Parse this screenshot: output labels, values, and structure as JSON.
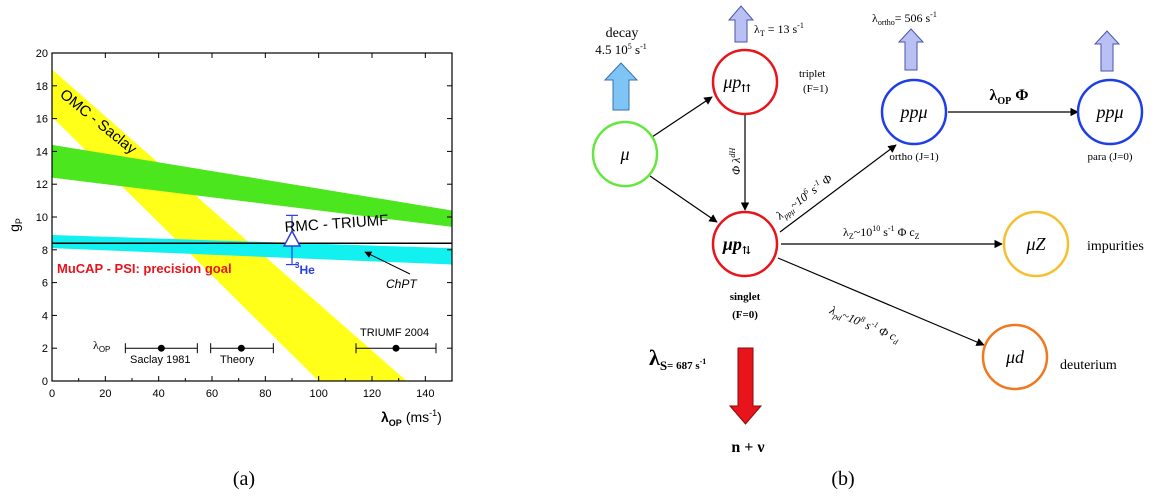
{
  "panel_a": {
    "caption": "(a)",
    "y_axis_label": "g",
    "y_axis_label_sub": "P",
    "x_axis_label": "λ",
    "x_axis_label_sub": "OP",
    "x_axis_unit": "(ms",
    "x_axis_unit_sup": "-1",
    "x_axis_unit_end": ")",
    "x_ticks": [
      "0",
      "20",
      "40",
      "60",
      "80",
      "100",
      "120",
      "140"
    ],
    "y_ticks": [
      "0",
      "2",
      "4",
      "6",
      "8",
      "10",
      "12",
      "14",
      "16",
      "18",
      "20"
    ],
    "band_omc": "OMC - Saclay",
    "band_rmc": "RMC - TRIUMF",
    "band_mucap": "MuCAP - PSI: precision goal",
    "chpt_label": "ChPT",
    "he3_sup": "3",
    "he3_label": "He",
    "lambda_op_marker": "λ",
    "lambda_op_marker_sub": "OP",
    "saclay_label": "Saclay 1981",
    "theory_label": "Theory",
    "triumf_label": "TRIUMF 2004",
    "colors": {
      "omc": "#ffff1a",
      "rmc": "#4ce61e",
      "mucap": "#12f0f0",
      "he3": "#2a3ee6",
      "mucap_text": "#e8141c"
    }
  },
  "chart_data": {
    "type": "area",
    "xlim": [
      0,
      150
    ],
    "ylim": [
      0,
      20
    ],
    "bands": [
      {
        "name": "OMC - Saclay",
        "upper": [
          [
            0,
            19
          ],
          [
            133,
            0
          ]
        ],
        "lower": [
          [
            0,
            16.1
          ],
          [
            100,
            0
          ]
        ]
      },
      {
        "name": "RMC - TRIUMF",
        "upper": [
          [
            0,
            14.4
          ],
          [
            150,
            10.4
          ]
        ],
        "lower": [
          [
            0,
            12.4
          ],
          [
            150,
            9.4
          ]
        ]
      },
      {
        "name": "MuCAP - PSI: precision goal",
        "upper": [
          [
            0,
            8.9
          ],
          [
            150,
            8.1
          ]
        ],
        "lower": [
          [
            0,
            8.1
          ],
          [
            150,
            7.1
          ]
        ]
      }
    ],
    "lines": [
      {
        "name": "ChPT",
        "points": [
          [
            0,
            8.4
          ],
          [
            150,
            8.4
          ]
        ]
      }
    ],
    "points": [
      {
        "name": "3He",
        "x": 90,
        "y": 8.6,
        "yerr": [
          1.5,
          1.5
        ]
      }
    ],
    "lambda_op_ranges": [
      {
        "name": "Saclay 1981",
        "center": 41,
        "range": [
          27.5,
          54.5
        ],
        "y": 2
      },
      {
        "name": "Theory",
        "center": 71,
        "range": [
          59.5,
          83
        ],
        "y": 2
      },
      {
        "name": "TRIUMF 2004",
        "center": 129,
        "range": [
          114,
          144
        ],
        "y": 2
      }
    ]
  },
  "panel_b": {
    "caption": "(b)",
    "decay_label": "decay",
    "decay_rate": "4.5 10",
    "decay_rate_sup": "5",
    "decay_rate_unit": " s",
    "decay_rate_unit_sup": "-1",
    "lambda_t": "λ",
    "lambda_t_sub": "T",
    "lambda_t_value": " = 13 s",
    "lambda_t_value_sup": "-1",
    "lambda_ortho": "λ",
    "lambda_ortho_sub": "ortho",
    "lambda_ortho_value": "= 506 s",
    "lambda_ortho_value_sup": "-1",
    "node_mu": "μ",
    "node_mu_triplet": "μp",
    "node_mu_triplet_sub": "⇈",
    "triplet_label": "triplet",
    "triplet_f": "(F=1)",
    "transition_triplet": "Φ λ",
    "transition_triplet_sup": "dH",
    "node_mu_singlet": "μp",
    "node_mu_singlet_sub": "⇅",
    "singlet_label": "singlet",
    "singlet_f": "(F=0)",
    "node_ppmu_ortho": "ppμ",
    "ortho_label": "ortho (J=1)",
    "node_ppmu_para": "ppμ",
    "para_label": "para (J=0)",
    "lambda_op_phi": "λ",
    "lambda_op_phi_sub": "OP",
    "lambda_op_phi_end": " Φ",
    "lambda_ppmu": "λ",
    "lambda_ppmu_sub": "ppμ",
    "lambda_ppmu_value": "~10",
    "lambda_ppmu_value_sup": "6",
    "lambda_ppmu_unit": " s",
    "lambda_ppmu_unit_sup": "-1",
    "lambda_ppmu_end": " Φ",
    "lambda_z": "λ",
    "lambda_z_sub": "Z",
    "lambda_z_value": "~10",
    "lambda_z_value_sup": "10",
    "lambda_z_unit": " s",
    "lambda_z_unit_sup": "-1",
    "lambda_z_end": " Φ c",
    "lambda_z_end_sub": "Z",
    "node_muz": "μZ",
    "impurities_label": "impurities",
    "lambda_pd": "λ",
    "lambda_pd_sub": "pd",
    "lambda_pd_value": "~10",
    "lambda_pd_value_sup": "8",
    "lambda_pd_unit": " s",
    "lambda_pd_unit_sup": "-1",
    "lambda_pd_end": " Φ c",
    "lambda_pd_end_sub": "d",
    "node_mud": "μd",
    "deuterium_label": "deuterium",
    "lambda_s": "λ",
    "lambda_s_sub": "S",
    "lambda_s_value": "= 687 s",
    "lambda_s_value_sup": "-1",
    "products": "n + ν",
    "colors": {
      "node_mu": "#66e640",
      "node_mu_p": "#e8141c",
      "node_ppmu": "#1e3ee6",
      "node_muz": "#f5c030",
      "node_mud": "#f07820",
      "arrow_up_fill": "#b8c0f4",
      "arrow_decay_fill": "#7ec4f4",
      "arrow_down_fill": "#e8141c"
    }
  }
}
